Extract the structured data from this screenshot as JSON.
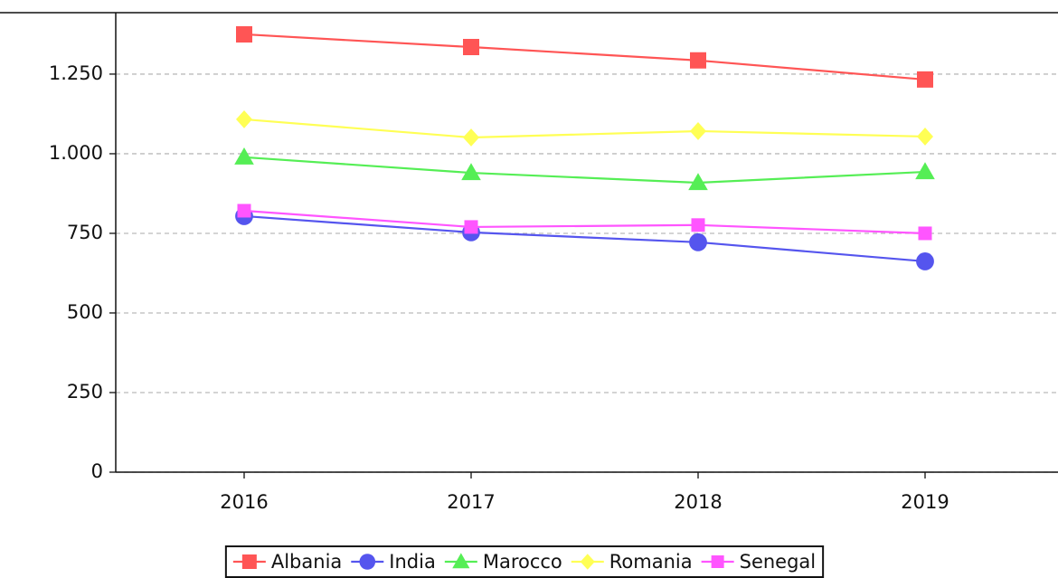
{
  "chart_data": {
    "type": "line",
    "categories": [
      "2016",
      "2017",
      "2018",
      "2019"
    ],
    "series": [
      {
        "name": "Albania",
        "color": "#ff5555",
        "marker": "square",
        "values": [
          1375,
          1335,
          1293,
          1233
        ]
      },
      {
        "name": "India",
        "color": "#5555ee",
        "marker": "circle",
        "values": [
          804,
          753,
          722,
          662
        ]
      },
      {
        "name": "Marocco",
        "color": "#55ee55",
        "marker": "triangle",
        "values": [
          989,
          940,
          909,
          943
        ]
      },
      {
        "name": "Romania",
        "color": "#ffff55",
        "marker": "diamond",
        "values": [
          1108,
          1051,
          1071,
          1054
        ]
      },
      {
        "name": "Senegal",
        "color": "#ff55ff",
        "marker": "square",
        "values": [
          821,
          770,
          776,
          750
        ]
      }
    ],
    "ylim": [
      0,
      1443
    ],
    "yticks": [
      0,
      250,
      500,
      750,
      {
        "value": 1000,
        "label": "1.000"
      },
      {
        "value": 1250,
        "label": "1.250"
      }
    ],
    "grid": true,
    "legend": "bottom"
  }
}
